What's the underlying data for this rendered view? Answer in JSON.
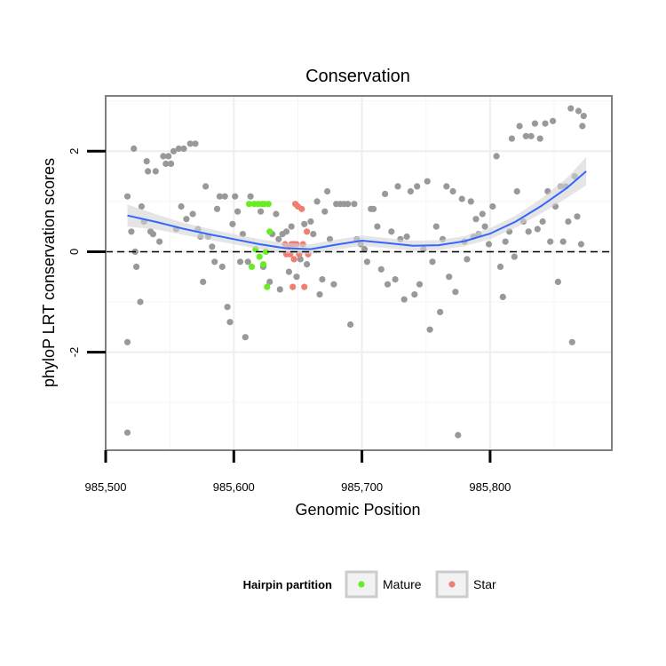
{
  "chart_data": {
    "type": "scatter",
    "title": "Conservation",
    "xlabel": "Genomic Position",
    "ylabel": "phyloP LRT conservation scores",
    "xlim": [
      985500,
      985895
    ],
    "ylim": [
      -3.95,
      3.1
    ],
    "x_ticks": [
      985500,
      985600,
      985700,
      985800
    ],
    "x_tick_labels": [
      "985,500",
      "985,600",
      "985,700",
      "985,800"
    ],
    "y_ticks": [
      2,
      0,
      -2
    ],
    "y_tick_labels": [
      "2",
      "0",
      "-2"
    ],
    "grid": true,
    "reference_line": {
      "y": 0,
      "style": "dashed"
    },
    "legend": {
      "title": "Hairpin partition",
      "position": "bottom",
      "entries": [
        {
          "label": "Mature",
          "color": "#66ee22"
        },
        {
          "label": "Star",
          "color": "#f07f73"
        }
      ]
    },
    "colors": {
      "other": "#999999",
      "smooth": "#3366ff",
      "band": "#d3d3d3"
    },
    "series": [
      {
        "group": "other",
        "points": [
          [
            985517,
            -3.6
          ],
          [
            985517,
            -1.8
          ],
          [
            985517,
            1.1
          ],
          [
            985520,
            0.4
          ],
          [
            985522,
            2.05
          ],
          [
            985523,
            0.0
          ],
          [
            985524,
            -0.3
          ],
          [
            985527,
            -1.0
          ],
          [
            985528,
            0.9
          ],
          [
            985530,
            0.6
          ],
          [
            985532,
            1.8
          ],
          [
            985533,
            1.6
          ],
          [
            985535,
            0.4
          ],
          [
            985537,
            0.35
          ],
          [
            985539,
            1.6
          ],
          [
            985542,
            0.2
          ],
          [
            985545,
            1.9
          ],
          [
            985547,
            1.75
          ],
          [
            985549,
            1.9
          ],
          [
            985551,
            1.75
          ],
          [
            985553,
            2.0
          ],
          [
            985555,
            0.45
          ],
          [
            985557,
            2.05
          ],
          [
            985559,
            0.9
          ],
          [
            985561,
            2.05
          ],
          [
            985563,
            0.65
          ],
          [
            985566,
            2.15
          ],
          [
            985568,
            0.75
          ],
          [
            985570,
            2.15
          ],
          [
            985572,
            0.45
          ],
          [
            985574,
            0.3
          ],
          [
            985576,
            -0.6
          ],
          [
            985578,
            1.3
          ],
          [
            985580,
            0.3
          ],
          [
            985583,
            0.1
          ],
          [
            985585,
            -0.2
          ],
          [
            985587,
            0.85
          ],
          [
            985589,
            1.1
          ],
          [
            985591,
            -0.3
          ],
          [
            985593,
            1.1
          ],
          [
            985595,
            -1.1
          ],
          [
            985597,
            -1.4
          ],
          [
            985599,
            0.55
          ],
          [
            985601,
            1.1
          ],
          [
            985603,
            0.8
          ],
          [
            985605,
            -0.2
          ],
          [
            985607,
            0.35
          ],
          [
            985609,
            -1.7
          ],
          [
            985611,
            -0.2
          ],
          [
            985613,
            1.1
          ],
          [
            985621,
            0.8
          ],
          [
            985623,
            -0.3
          ],
          [
            985628,
            -0.6
          ],
          [
            985630,
            0.35
          ],
          [
            985633,
            0.75
          ],
          [
            985635,
            0.25
          ],
          [
            985636,
            -0.75
          ],
          [
            985638,
            0.35
          ],
          [
            985641,
            0.4
          ],
          [
            985643,
            -0.4
          ],
          [
            985645,
            0.5
          ],
          [
            985647,
            0.15
          ],
          [
            985649,
            -0.5
          ],
          [
            985652,
            -0.15
          ],
          [
            985655,
            0.55
          ],
          [
            985657,
            -0.25
          ],
          [
            985660,
            0.6
          ],
          [
            985662,
            0.35
          ],
          [
            985665,
            1.0
          ],
          [
            985667,
            -0.85
          ],
          [
            985669,
            -0.55
          ],
          [
            985671,
            0.8
          ],
          [
            985673,
            1.2
          ],
          [
            985675,
            0.25
          ],
          [
            985678,
            -0.65
          ],
          [
            985680,
            0.95
          ],
          [
            985683,
            0.95
          ],
          [
            985686,
            0.95
          ],
          [
            985689,
            0.95
          ],
          [
            985691,
            -1.45
          ],
          [
            985694,
            0.95
          ],
          [
            985696,
            0.25
          ],
          [
            985699,
            0.15
          ],
          [
            985702,
            0.05
          ],
          [
            985704,
            -0.2
          ],
          [
            985707,
            0.85
          ],
          [
            985709,
            0.85
          ],
          [
            985712,
            0.5
          ],
          [
            985715,
            -0.35
          ],
          [
            985718,
            1.15
          ],
          [
            985720,
            -0.65
          ],
          [
            985723,
            0.4
          ],
          [
            985726,
            -0.55
          ],
          [
            985728,
            1.3
          ],
          [
            985730,
            0.25
          ],
          [
            985733,
            -0.95
          ],
          [
            985735,
            0.3
          ],
          [
            985738,
            1.2
          ],
          [
            985741,
            -0.85
          ],
          [
            985743,
            1.3
          ],
          [
            985745,
            -0.65
          ],
          [
            985748,
            0.05
          ],
          [
            985751,
            1.4
          ],
          [
            985753,
            -1.55
          ],
          [
            985755,
            -0.2
          ],
          [
            985758,
            0.5
          ],
          [
            985761,
            -1.2
          ],
          [
            985763,
            0.25
          ],
          [
            985766,
            1.3
          ],
          [
            985768,
            -0.5
          ],
          [
            985771,
            1.2
          ],
          [
            985773,
            -0.8
          ],
          [
            985775,
            -3.65
          ],
          [
            985778,
            1.05
          ],
          [
            985780,
            0.2
          ],
          [
            985782,
            -0.15
          ],
          [
            985785,
            1.0
          ],
          [
            985787,
            0.3
          ],
          [
            985789,
            0.65
          ],
          [
            985791,
            0.35
          ],
          [
            985794,
            0.75
          ],
          [
            985796,
            0.5
          ],
          [
            985799,
            0.15
          ],
          [
            985802,
            0.9
          ],
          [
            985805,
            1.9
          ],
          [
            985808,
            -0.3
          ],
          [
            985810,
            -0.9
          ],
          [
            985812,
            0.2
          ],
          [
            985815,
            0.4
          ],
          [
            985817,
            2.25
          ],
          [
            985819,
            -0.1
          ],
          [
            985821,
            1.2
          ],
          [
            985823,
            2.5
          ],
          [
            985826,
            0.6
          ],
          [
            985828,
            2.3
          ],
          [
            985830,
            0.4
          ],
          [
            985832,
            2.3
          ],
          [
            985835,
            2.55
          ],
          [
            985837,
            0.45
          ],
          [
            985839,
            2.25
          ],
          [
            985841,
            0.6
          ],
          [
            985843,
            2.55
          ],
          [
            985845,
            1.2
          ],
          [
            985847,
            0.2
          ],
          [
            985849,
            2.6
          ],
          [
            985851,
            0.9
          ],
          [
            985853,
            -0.6
          ],
          [
            985855,
            1.3
          ],
          [
            985857,
            0.2
          ],
          [
            985859,
            1.3
          ],
          [
            985861,
            0.6
          ],
          [
            985863,
            2.85
          ],
          [
            985864,
            -1.8
          ],
          [
            985866,
            1.5
          ],
          [
            985868,
            0.7
          ],
          [
            985869,
            2.8
          ],
          [
            985871,
            0.15
          ],
          [
            985872,
            2.5
          ],
          [
            985873,
            2.7
          ]
        ]
      },
      {
        "group": "Mature",
        "points": [
          [
            985612,
            0.95
          ],
          [
            985614,
            -0.3
          ],
          [
            985616,
            0.95
          ],
          [
            985617,
            0.05
          ],
          [
            985619,
            0.95
          ],
          [
            985620,
            -0.1
          ],
          [
            985622,
            0.95
          ],
          [
            985623,
            -0.25
          ],
          [
            985624,
            0.95
          ],
          [
            985625,
            0.0
          ],
          [
            985626,
            -0.7
          ],
          [
            985627,
            0.95
          ],
          [
            985628,
            0.4
          ]
        ]
      },
      {
        "group": "Star",
        "points": [
          [
            985640,
            0.15
          ],
          [
            985641,
            -0.05
          ],
          [
            985643,
            0.1
          ],
          [
            985644,
            -0.05
          ],
          [
            985645,
            0.15
          ],
          [
            985646,
            -0.7
          ],
          [
            985647,
            -0.15
          ],
          [
            985648,
            0.95
          ],
          [
            985649,
            0.15
          ],
          [
            985650,
            0.9
          ],
          [
            985651,
            -0.05
          ],
          [
            985653,
            0.85
          ],
          [
            985654,
            0.15
          ],
          [
            985655,
            -0.7
          ],
          [
            985657,
            0.4
          ],
          [
            985658,
            -0.05
          ]
        ]
      }
    ],
    "smooth_line": {
      "x": [
        985517,
        985540,
        985560,
        985580,
        985600,
        985620,
        985640,
        985660,
        985680,
        985700,
        985720,
        985740,
        985760,
        985780,
        985800,
        985820,
        985840,
        985860,
        985875
      ],
      "y": [
        0.72,
        0.59,
        0.46,
        0.35,
        0.25,
        0.15,
        0.07,
        0.05,
        0.14,
        0.22,
        0.17,
        0.12,
        0.13,
        0.21,
        0.36,
        0.6,
        0.91,
        1.27,
        1.6
      ],
      "band": [
        0.22,
        0.15,
        0.12,
        0.11,
        0.1,
        0.1,
        0.1,
        0.1,
        0.1,
        0.1,
        0.1,
        0.1,
        0.1,
        0.1,
        0.11,
        0.12,
        0.15,
        0.2,
        0.28
      ]
    }
  }
}
